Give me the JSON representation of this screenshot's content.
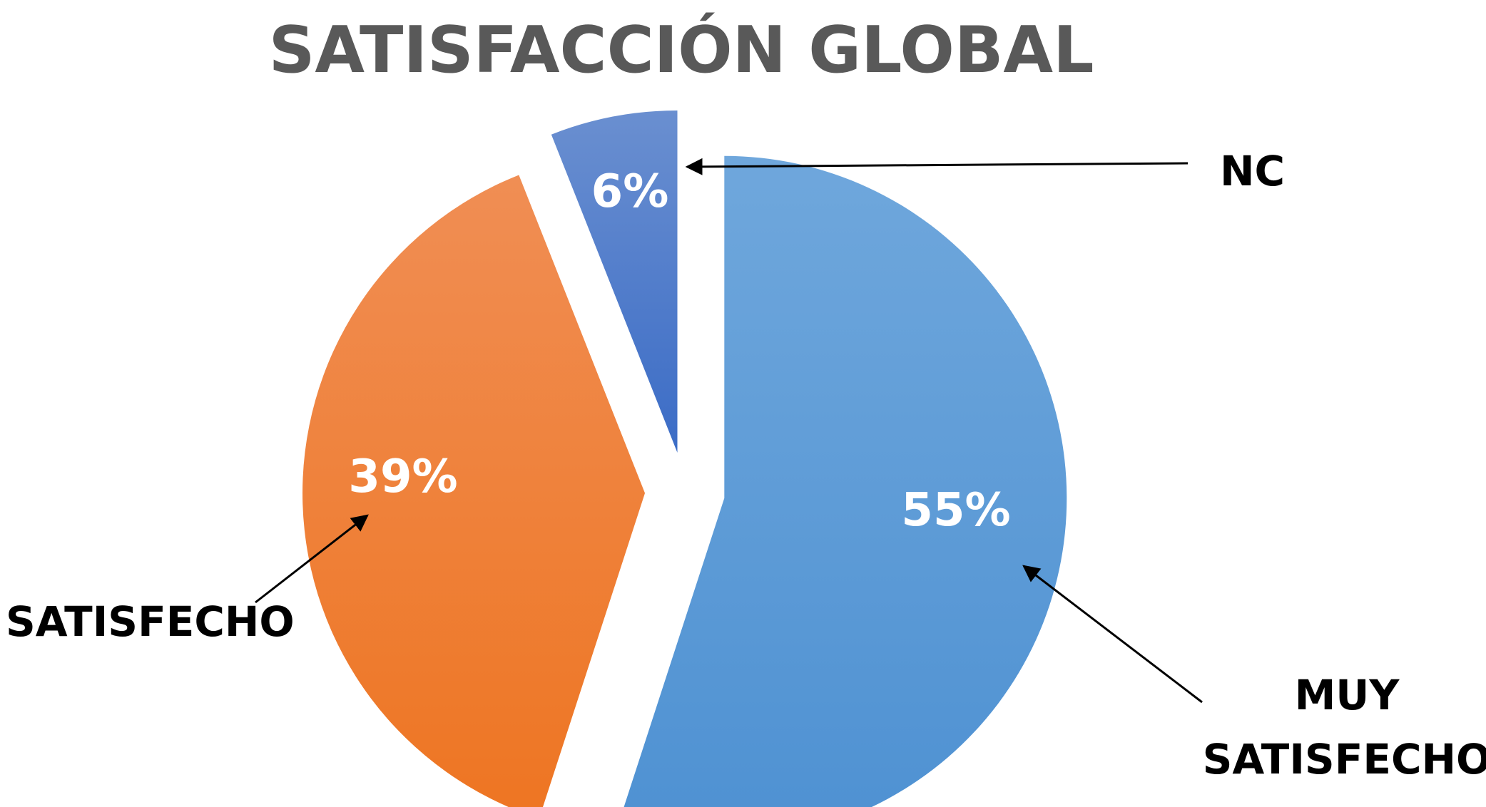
{
  "chart_data": {
    "type": "pie",
    "title": "SATISFACCIÓN GLOBAL",
    "slices": [
      {
        "category": "MUY SATISFECHO",
        "value": 55,
        "label": "55%",
        "color": "#4E91D2",
        "color_light": "#6FA7DC"
      },
      {
        "category": "SATISFECHO",
        "value": 39,
        "label": "39%",
        "color": "#EE7522",
        "color_light": "#F08E54"
      },
      {
        "category": "NC",
        "value": 6,
        "label": "6%",
        "color": "#3B6CC6",
        "color_light": "#6A8FD0"
      }
    ],
    "category_labels": {
      "nc": "NC",
      "satisfecho": "SATISFECHO",
      "muy_satisfecho_line1": "MUY",
      "muy_satisfecho_line2": "SATISFECHO"
    },
    "legend": "none"
  }
}
